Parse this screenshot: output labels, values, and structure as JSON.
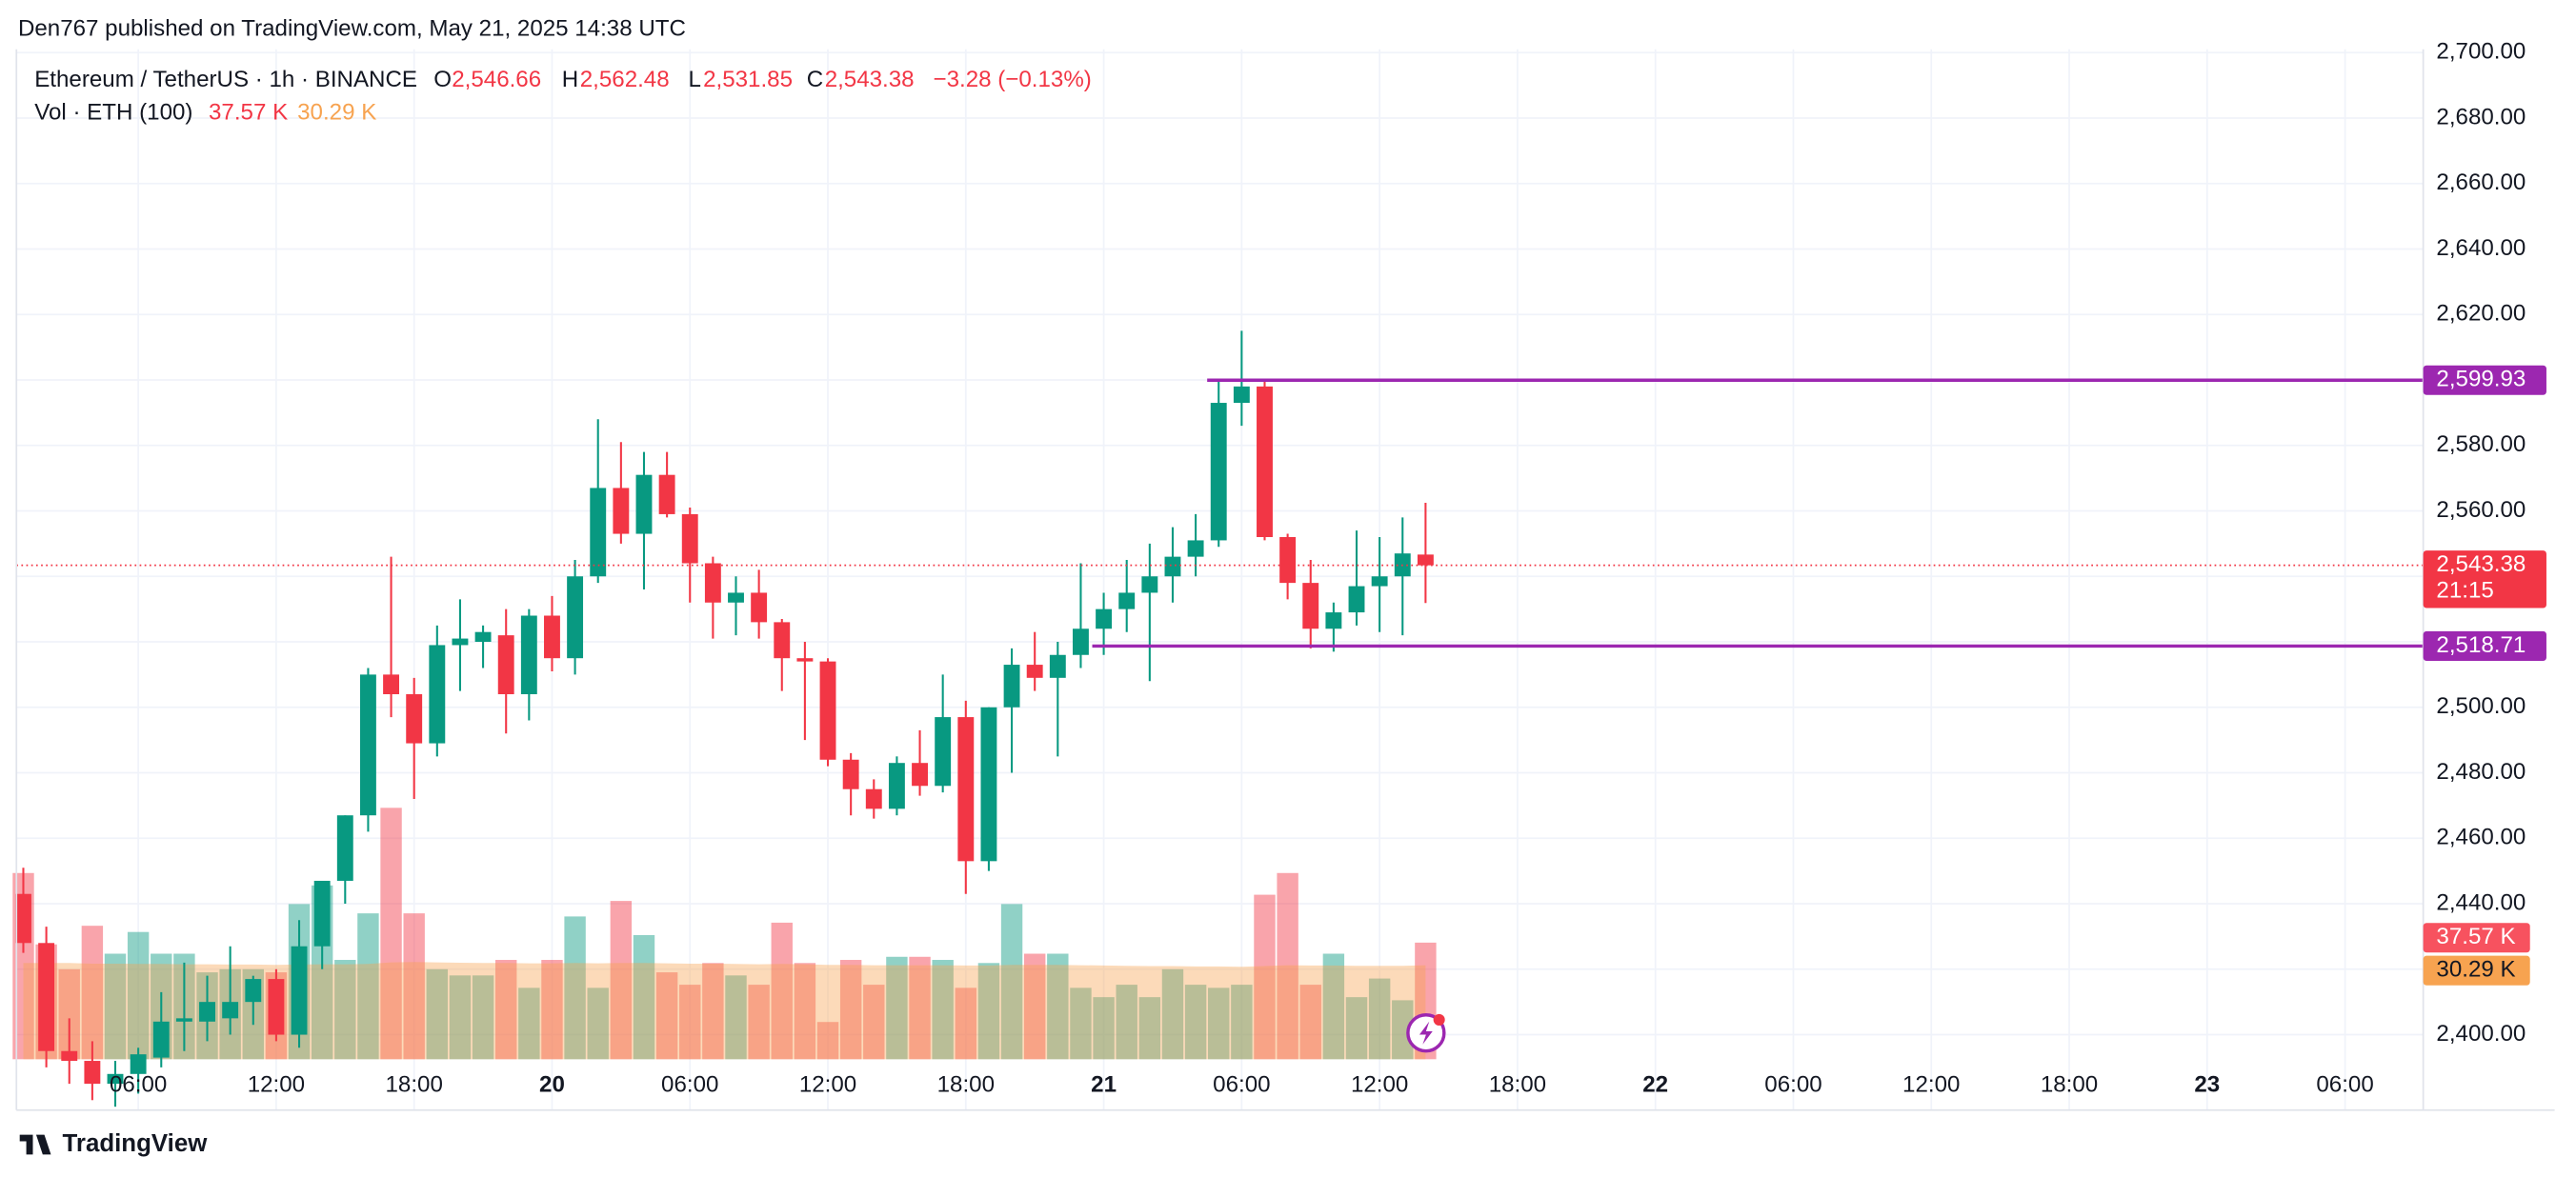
{
  "chart_data": {
    "type": "candlestick",
    "attribution": "Den767 published on TradingView.com, May 21, 2025 14:38 UTC",
    "legend": {
      "symbol": "Ethereum / TetherUS · 1h · BINANCE",
      "ohlc": [
        {
          "key": "O",
          "value": 2546.66,
          "label": "2,546.66"
        },
        {
          "key": "H",
          "value": 2562.48,
          "label": "2,562.48"
        },
        {
          "key": "L",
          "value": 2531.85,
          "label": "2,531.85"
        },
        {
          "key": "C",
          "value": 2543.38,
          "label": "2,543.38"
        }
      ],
      "change": "−3.28 (−0.13%)"
    },
    "x": [
      1,
      2,
      3,
      4,
      5,
      6,
      7,
      8,
      9,
      10,
      11,
      12,
      13,
      14,
      15,
      16,
      17,
      18,
      19,
      20,
      21,
      22,
      23,
      24,
      25,
      26,
      27,
      28,
      29,
      30,
      31,
      32,
      33,
      34,
      35,
      36,
      37,
      38,
      39,
      40,
      41,
      42,
      43,
      44,
      45,
      46,
      47,
      48,
      49,
      50,
      51,
      52,
      53,
      54,
      55,
      56,
      57,
      58,
      59,
      60,
      61,
      62
    ],
    "open": [
      2443,
      2428,
      2395,
      2392,
      2385,
      2388,
      2393,
      2404,
      2404,
      2405,
      2410,
      2417,
      2400,
      2427,
      2447,
      2467,
      2510,
      2504,
      2489,
      2519,
      2520,
      2522,
      2504,
      2528,
      2515,
      2540,
      2567,
      2553,
      2571,
      2559,
      2544,
      2532,
      2535,
      2526,
      2515,
      2514,
      2484,
      2475,
      2469,
      2483,
      2476,
      2497,
      2453,
      2500,
      2513,
      2509,
      2516,
      2524,
      2530,
      2535,
      2540,
      2546,
      2551,
      2593,
      2598,
      2552,
      2538,
      2524,
      2529,
      2537,
      2540,
      2546.66
    ],
    "high": [
      2451,
      2433,
      2405,
      2398,
      2392,
      2396,
      2413,
      2422,
      2418,
      2427,
      2418,
      2420,
      2435,
      2447,
      2467,
      2512,
      2546,
      2509,
      2525,
      2533,
      2525,
      2530,
      2530,
      2534,
      2545,
      2588,
      2581,
      2578,
      2578,
      2561,
      2546,
      2540,
      2542,
      2527,
      2520,
      2515,
      2486,
      2478,
      2485,
      2493,
      2510,
      2502,
      2500,
      2518,
      2523,
      2520,
      2544,
      2535,
      2545,
      2550,
      2555,
      2559,
      2600,
      2615,
      2600,
      2553,
      2545,
      2532,
      2554,
      2552,
      2558,
      2562.48
    ],
    "low": [
      2425,
      2390,
      2385,
      2380,
      2378,
      2382,
      2390,
      2395,
      2398,
      2400,
      2403,
      2398,
      2396,
      2420,
      2440,
      2462,
      2497,
      2472,
      2485,
      2505,
      2512,
      2492,
      2496,
      2511,
      2510,
      2538,
      2550,
      2536,
      2558,
      2532,
      2521,
      2522,
      2521,
      2505,
      2490,
      2482,
      2467,
      2466,
      2467,
      2473,
      2474,
      2443,
      2450,
      2480,
      2505,
      2485,
      2512,
      2516,
      2523,
      2508,
      2532,
      2540,
      2549,
      2586,
      2551,
      2533,
      2518,
      2517,
      2525,
      2523,
      2522,
      2531.85
    ],
    "close": [
      2428,
      2395,
      2392,
      2385,
      2388,
      2394,
      2404,
      2405,
      2410,
      2410,
      2417,
      2400,
      2427,
      2447,
      2467,
      2510,
      2504,
      2489,
      2519,
      2521,
      2523,
      2504,
      2528,
      2515,
      2540,
      2567,
      2553,
      2571,
      2559,
      2544,
      2532,
      2535,
      2526,
      2515,
      2514,
      2484,
      2475,
      2469,
      2483,
      2476,
      2497,
      2453,
      2500,
      2513,
      2509,
      2516,
      2524,
      2530,
      2535,
      2540,
      2546,
      2551,
      2593,
      2598,
      2552,
      2538,
      2524,
      2529,
      2537,
      2540,
      2547,
      2543.38
    ],
    "colors": {
      "up": "#089981",
      "down": "#f23645"
    },
    "xlim": [
      0.7,
      105.4
    ],
    "xticks": [
      {
        "value": 6,
        "label": "06:00"
      },
      {
        "value": 12,
        "label": "12:00"
      },
      {
        "value": 18,
        "label": "18:00"
      },
      {
        "value": 24,
        "label": "20"
      },
      {
        "value": 30,
        "label": "06:00"
      },
      {
        "value": 36,
        "label": "12:00"
      },
      {
        "value": 42,
        "label": "18:00"
      },
      {
        "value": 48,
        "label": "21"
      },
      {
        "value": 54,
        "label": "06:00"
      },
      {
        "value": 60,
        "label": "12:00"
      },
      {
        "value": 66,
        "label": "18:00"
      },
      {
        "value": 72,
        "label": "22"
      },
      {
        "value": 78,
        "label": "06:00"
      },
      {
        "value": 84,
        "label": "12:00"
      },
      {
        "value": 90,
        "label": "18:00"
      },
      {
        "value": 96,
        "label": "23"
      },
      {
        "value": 102,
        "label": "06:00"
      }
    ],
    "ylim": [
      2392.5,
      2701
    ],
    "yticks": [
      {
        "value": 2400,
        "label": "2,400.00"
      },
      {
        "value": 2420,
        "label": "2,420.00"
      },
      {
        "value": 2440,
        "label": "2,440.00"
      },
      {
        "value": 2460,
        "label": "2,460.00"
      },
      {
        "value": 2480,
        "label": "2,480.00"
      },
      {
        "value": 2500,
        "label": "2,500.00"
      },
      {
        "value": 2520,
        "label": "2,520.00"
      },
      {
        "value": 2540,
        "label": "2,540.00"
      },
      {
        "value": 2560,
        "label": "2,560.00"
      },
      {
        "value": 2580,
        "label": "2,580.00"
      },
      {
        "value": 2600,
        "label": "2,600.00"
      },
      {
        "value": 2620,
        "label": "2,620.00"
      },
      {
        "value": 2640,
        "label": "2,640.00"
      },
      {
        "value": 2660,
        "label": "2,660.00"
      },
      {
        "value": 2680,
        "label": "2,680.00"
      },
      {
        "value": 2700,
        "label": "2,700.00"
      }
    ],
    "grid": true,
    "volume": {
      "name": "Vol · ETH (100)",
      "ylim": [
        0,
        100
      ],
      "last_label": "37.57 K",
      "values": [
        60,
        37,
        29,
        43,
        34,
        41,
        34,
        34,
        28,
        29,
        29,
        28,
        50,
        56,
        32,
        47,
        81,
        47,
        29,
        27,
        27,
        32,
        23,
        32,
        46,
        23,
        51,
        40,
        28,
        24,
        31,
        27,
        24,
        44,
        31,
        12,
        32,
        24,
        33,
        33,
        32,
        23,
        31,
        50,
        34,
        34,
        23,
        20,
        24,
        20,
        29,
        24,
        23,
        24,
        53,
        60,
        24,
        34,
        20,
        26,
        19,
        37.57
      ]
    },
    "volume_ma": {
      "color": "#f7a350",
      "last_label": "30.29 K",
      "values": [
        31,
        31,
        31,
        30.8,
        30.8,
        30.7,
        30.7,
        30.6,
        30.6,
        30.5,
        30.5,
        30.4,
        30.5,
        30.6,
        30.6,
        30.7,
        31.2,
        31.3,
        31.2,
        31.1,
        31,
        31,
        30.9,
        30.9,
        31,
        30.9,
        31,
        31,
        30.9,
        30.8,
        30.8,
        30.7,
        30.6,
        30.7,
        30.6,
        30.4,
        30.4,
        30.3,
        30.3,
        30.3,
        30.3,
        30.2,
        30.2,
        30.4,
        30.4,
        30.4,
        30.3,
        30.2,
        30.1,
        30,
        30,
        29.9,
        29.9,
        29.8,
        30,
        30.3,
        30.2,
        30.2,
        30.1,
        30.1,
        30.1,
        30.29
      ]
    },
    "levels": [
      {
        "value": 2599.93,
        "label": "2,599.93",
        "start": 53,
        "color": "#9c27b0"
      },
      {
        "value": 2518.71,
        "label": "2,518.71",
        "start": 48,
        "color": "#9c27b0"
      }
    ],
    "last_price": {
      "value": 2543.38,
      "label": "2,543.38",
      "countdown": "21:15"
    },
    "brand": "TradingView"
  }
}
